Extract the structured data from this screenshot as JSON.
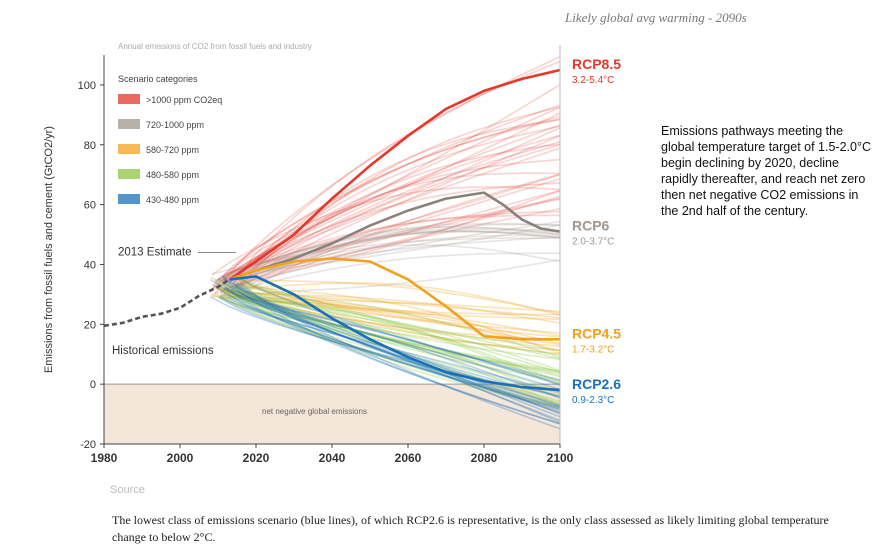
{
  "top_title": "Likely global avg warming - 2090s",
  "tiny_top_note": "Annual emissions of CO2 from fossil fuels and industry",
  "annotation": "Emissions pathways meeting the global temperature target of 1.5-2.0°C begin declining by 2020, decline rapidly thereafter, and reach net zero then net negative CO2 emissions in the 2nd half of the century.",
  "figure_label": "Source",
  "caption": "The lowest class of emissions scenario (blue lines), of which RCP2.6 is representative, is the only class assessed as likely limiting global temperature change to below 2°C.",
  "colors": {
    "red": "#e3382b",
    "gray": "#a0968e",
    "orange": "#f2a11c",
    "green": "#8cc63f",
    "blue": "#1a70b8",
    "negative_band": "#f4e6d8"
  },
  "chart_data": {
    "type": "line",
    "title": "",
    "xlabel": "",
    "ylabel": "Emissions from fossil fuels and cement (GtCO2/yr)",
    "xlim": [
      1980,
      2100
    ],
    "ylim": [
      -20,
      110
    ],
    "x_ticks": [
      1980,
      2000,
      2020,
      2040,
      2060,
      2080,
      2100
    ],
    "y_ticks": [
      -20,
      0,
      20,
      40,
      60,
      80,
      100
    ],
    "grid": false,
    "legend": {
      "title": "Scenario categories",
      "position": "top-left",
      "items": [
        {
          "label": ">1000 ppm CO2eq",
          "color": "#e3382b"
        },
        {
          "label": "720-1000 ppm",
          "color": "#a0968e"
        },
        {
          "label": "580-720 ppm",
          "color": "#f2a11c"
        },
        {
          "label": "480-580 ppm",
          "color": "#8cc63f"
        },
        {
          "label": "430-480 ppm",
          "color": "#1a70b8"
        }
      ]
    },
    "annotations": {
      "estimate_2013": "2013 Estimate",
      "historical": "Historical emissions",
      "negative_region": "net negative global emissions"
    },
    "series": [
      {
        "name": "Historical",
        "color": "#555555",
        "dashed": true,
        "x": [
          1980,
          1985,
          1990,
          1995,
          2000,
          2005,
          2010,
          2013
        ],
        "y": [
          19.5,
          20.5,
          22.5,
          23.5,
          25.5,
          29.5,
          32.5,
          35
        ]
      },
      {
        "name": "RCP8.5",
        "color": "#e3382b",
        "x": [
          2013,
          2020,
          2030,
          2040,
          2050,
          2060,
          2070,
          2080,
          2090,
          2100
        ],
        "y": [
          35,
          41,
          50,
          62,
          73,
          83,
          92,
          98,
          102,
          105
        ]
      },
      {
        "name": "RCP6",
        "color": "#8a817a",
        "x": [
          2013,
          2020,
          2030,
          2040,
          2050,
          2060,
          2070,
          2080,
          2085,
          2090,
          2095,
          2100
        ],
        "y": [
          35,
          38,
          42,
          47,
          53,
          58,
          62,
          64,
          60,
          55,
          52,
          51
        ]
      },
      {
        "name": "RCP4.5",
        "color": "#f2a11c",
        "x": [
          2013,
          2020,
          2030,
          2040,
          2050,
          2060,
          2070,
          2080,
          2090,
          2100
        ],
        "y": [
          35,
          38,
          41,
          42,
          41,
          35,
          26,
          16,
          15,
          15
        ]
      },
      {
        "name": "RCP2.6",
        "color": "#1a70b8",
        "x": [
          2013,
          2020,
          2030,
          2040,
          2050,
          2060,
          2070,
          2080,
          2090,
          2100
        ],
        "y": [
          35,
          36,
          30,
          22,
          15,
          9,
          4,
          1,
          -1,
          -2
        ]
      }
    ],
    "right_labels": [
      {
        "name": "RCP8.5",
        "range": "3.2-5.4°C",
        "y": 105,
        "color": "#e3382b"
      },
      {
        "name": "RCP6",
        "range": "2.0-3.7°C",
        "y": 51,
        "color": "#a0968e"
      },
      {
        "name": "RCP4.5",
        "range": "1.7-3.2°C",
        "y": 15,
        "color": "#f2a11c"
      },
      {
        "name": "RCP2.6",
        "range": "0.9-2.3°C",
        "y": -2,
        "color": "#1a70b8"
      }
    ]
  }
}
